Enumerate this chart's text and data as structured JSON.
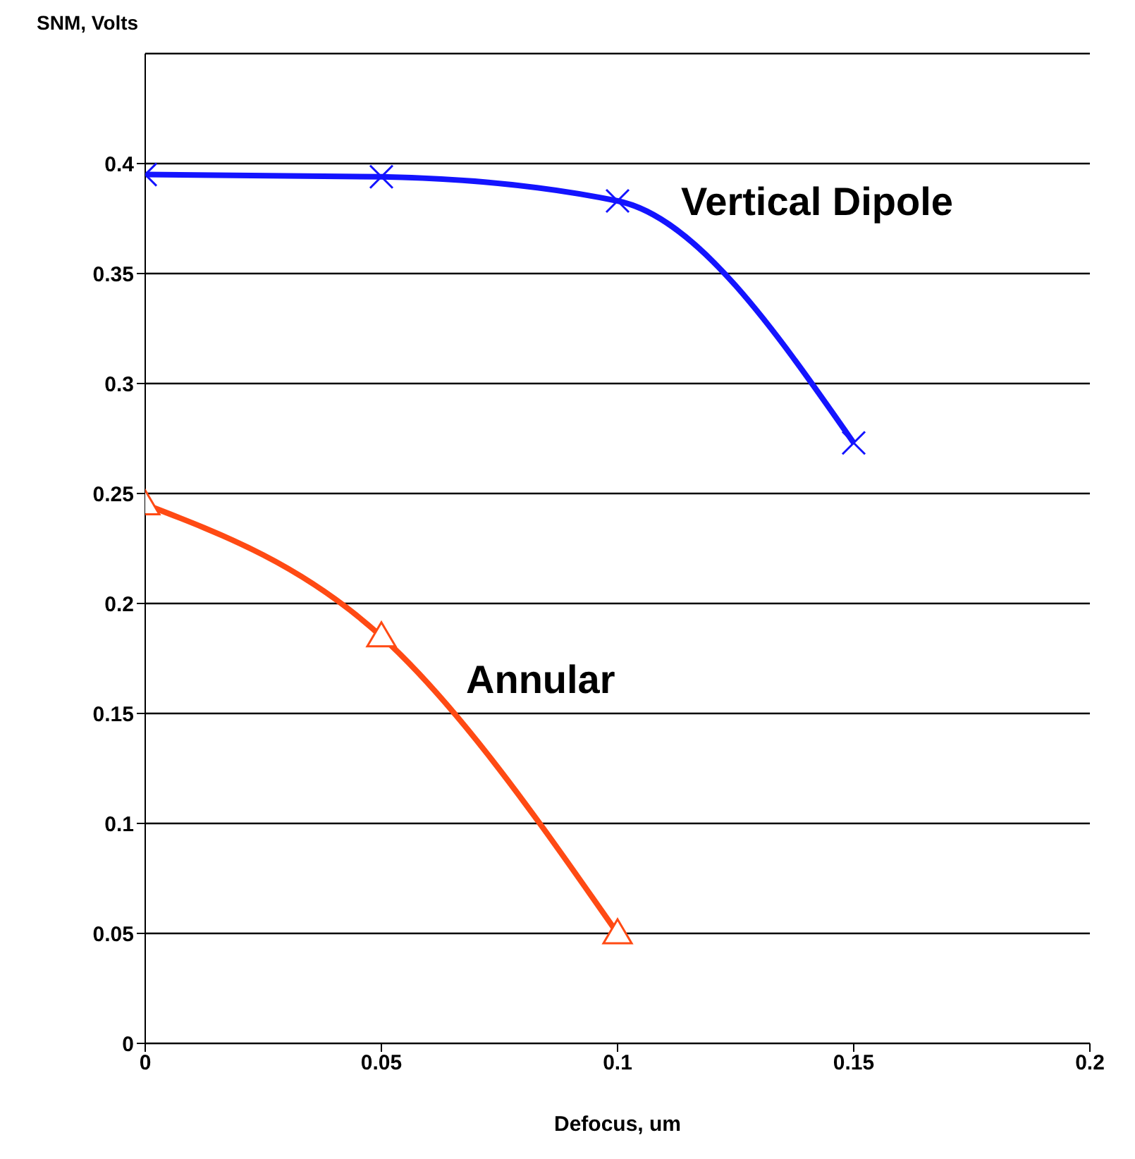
{
  "chart_data": {
    "type": "line",
    "ylabel": "SNM, Volts",
    "xlabel": "Defocus, um",
    "xlim": [
      0,
      0.2
    ],
    "xticks": [
      0,
      0.05,
      0.1,
      0.15,
      0.2
    ],
    "ylim": [
      0,
      0.45
    ],
    "yticks": [
      0,
      0.05,
      0.1,
      0.15,
      0.2,
      0.25,
      0.3,
      0.35,
      0.4
    ],
    "grid": "y",
    "legend": false,
    "line_style": "solid",
    "series": [
      {
        "name": "Vertical Dipole",
        "color": "#1414ff",
        "marker": "cross",
        "x": [
          0,
          0.05,
          0.1,
          0.15
        ],
        "values": [
          0.395,
          0.394,
          0.383,
          0.273
        ]
      },
      {
        "name": "Annular",
        "color": "#ff4a14",
        "marker": "triangle",
        "x": [
          0,
          0.05,
          0.1
        ],
        "values": [
          0.245,
          0.185,
          0.05
        ]
      }
    ]
  }
}
